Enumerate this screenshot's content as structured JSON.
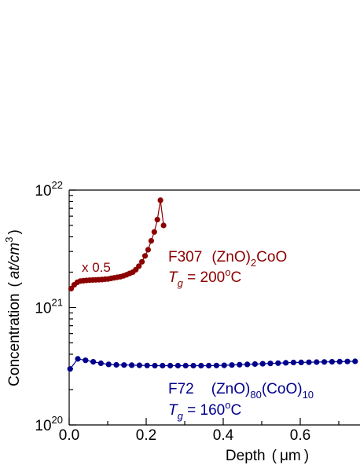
{
  "chart_data": {
    "type": "scatter",
    "title": "",
    "xlabel": "Depth",
    "xlabel_unit": "μm",
    "ylabel": "Concentration",
    "ylabel_unit_main": "at/cm",
    "ylabel_unit_exp": "3",
    "x_scale": "linear",
    "y_scale": "log",
    "xlim": [
      0.0,
      0.75
    ],
    "ylim": [
      1e+20,
      1e+22
    ],
    "x_ticks": [
      {
        "value": 0.0,
        "label": "0.0"
      },
      {
        "value": 0.2,
        "label": "0.2"
      },
      {
        "value": 0.4,
        "label": "0.4"
      },
      {
        "value": 0.6,
        "label": "0.6"
      }
    ],
    "y_ticks": [
      {
        "value": 1e+20,
        "base": "10",
        "exp": "20"
      },
      {
        "value": 1e+21,
        "base": "10",
        "exp": "21"
      },
      {
        "value": 1e+22,
        "base": "10",
        "exp": "22"
      }
    ],
    "grid": false,
    "series": [
      {
        "color": "#8b0000",
        "line": true,
        "x": [
          0.005,
          0.013,
          0.021,
          0.029,
          0.037,
          0.045,
          0.053,
          0.061,
          0.069,
          0.077,
          0.085,
          0.093,
          0.101,
          0.109,
          0.117,
          0.125,
          0.133,
          0.141,
          0.149,
          0.157,
          0.165,
          0.173,
          0.181,
          0.189,
          0.197,
          0.205,
          0.213,
          0.221,
          0.229,
          0.237,
          0.245
        ],
        "y": [
          1.45e+21,
          1.56e+21,
          1.64e+21,
          1.68e+21,
          1.69e+21,
          1.7e+21,
          1.71e+21,
          1.715e+21,
          1.72e+21,
          1.725e+21,
          1.73e+21,
          1.74e+21,
          1.75e+21,
          1.77e+21,
          1.79e+21,
          1.81e+21,
          1.83e+21,
          1.86e+21,
          1.9e+21,
          1.95e+21,
          2e+21,
          2.1e+21,
          2.25e+21,
          2.45e+21,
          2.75e+21,
          3.1e+21,
          3.7e+21,
          4.4e+21,
          5.6e+21,
          8.2e+21,
          5e+21
        ]
      },
      {
        "color": "#00008b",
        "line": true,
        "x": [
          0.0025,
          0.0225,
          0.0425,
          0.0625,
          0.0825,
          0.1025,
          0.1225,
          0.1425,
          0.1625,
          0.1825,
          0.2025,
          0.2225,
          0.2425,
          0.2625,
          0.2825,
          0.3025,
          0.3225,
          0.3425,
          0.3625,
          0.3825,
          0.4025,
          0.4225,
          0.4425,
          0.4625,
          0.4825,
          0.5025,
          0.5225,
          0.5425,
          0.5625,
          0.5825,
          0.6025,
          0.6225,
          0.6425,
          0.6625,
          0.6825,
          0.7025,
          0.7225,
          0.7425
        ],
        "y": [
          3e+20,
          3.65e+20,
          3.55e+20,
          3.45e+20,
          3.35e+20,
          3.28e+20,
          3.25e+20,
          3.24e+20,
          3.23e+20,
          3.22e+20,
          3.21e+20,
          3.2e+20,
          3.2e+20,
          3.2e+20,
          3.2e+20,
          3.2e+20,
          3.2e+20,
          3.2e+20,
          3.2e+20,
          3.21e+20,
          3.22e+20,
          3.24e+20,
          3.26e+20,
          3.28e+20,
          3.3e+20,
          3.32e+20,
          3.34e+20,
          3.36e+20,
          3.38e+20,
          3.4e+20,
          3.41e+20,
          3.42e+20,
          3.43e+20,
          3.44e+20,
          3.45e+20,
          3.46e+20,
          3.47e+20,
          3.48e+20
        ]
      }
    ],
    "annotations": {
      "scale_note": {
        "text": "x 0.5",
        "color": "#8b0000",
        "x": 0.07,
        "y": 1.95e+21
      },
      "red_label": {
        "color": "#8b0000",
        "line1": {
          "sample": "F307",
          "prefix": "(ZnO)",
          "sub": "2",
          "suffix": "CoO"
        },
        "line2": {
          "var": "T",
          "var_sub": "g",
          "eq": " = 200",
          "deg": "o",
          "unit": "C"
        }
      },
      "blue_label": {
        "color": "#00008b",
        "line1": {
          "sample": "F72",
          "prefix": "(ZnO)",
          "sub1": "80",
          "mid": "(CoO)",
          "sub2": "10"
        },
        "line2": {
          "var": "T",
          "var_sub": "g",
          "eq": " = 160",
          "deg": "o",
          "unit": "C"
        }
      }
    }
  }
}
